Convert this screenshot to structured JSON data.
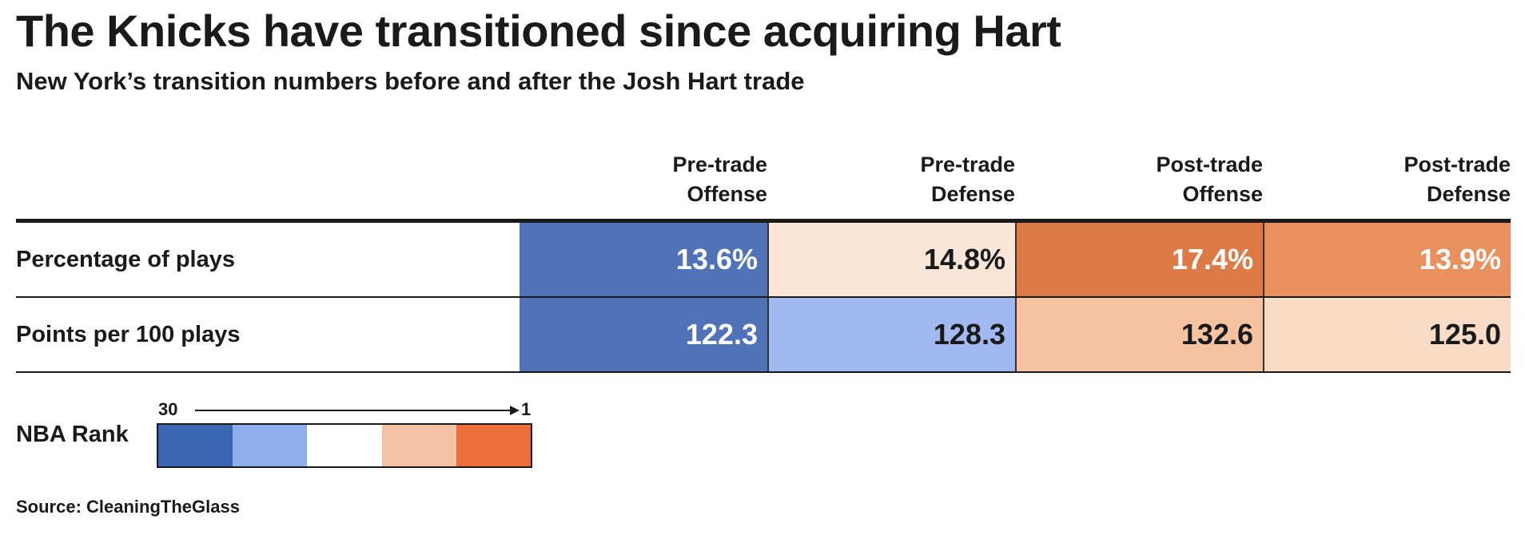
{
  "chart_data": {
    "type": "table",
    "title": "The Knicks have transitioned since acquiring Hart",
    "subtitle": "New York’s transition numbers before and after the Josh Hart trade",
    "columns": [
      {
        "line1": "Pre-trade",
        "line2": "Offense"
      },
      {
        "line1": "Pre-trade",
        "line2": "Defense"
      },
      {
        "line1": "Post-trade",
        "line2": "Offense"
      },
      {
        "line1": "Post-trade",
        "line2": "Defense"
      }
    ],
    "rows": [
      {
        "label": "Percentage of plays",
        "cells": [
          {
            "value": "13.6%",
            "color": "#4f72b8",
            "text_color": "#ffffff"
          },
          {
            "value": "14.8%",
            "color": "#f9e6d8",
            "text_color": "#1a1a1a"
          },
          {
            "value": "17.4%",
            "color": "#de7a46",
            "text_color": "#ffffff"
          },
          {
            "value": "13.9%",
            "color": "#e8915f",
            "text_color": "#ffffff"
          }
        ]
      },
      {
        "label": "Points per 100 plays",
        "cells": [
          {
            "value": "122.3",
            "color": "#4f72b8",
            "text_color": "#ffffff"
          },
          {
            "value": "128.3",
            "color": "#a1b9f0",
            "text_color": "#1a1a1a"
          },
          {
            "value": "132.6",
            "color": "#f5c3a0",
            "text_color": "#1a1a1a"
          },
          {
            "value": "125.0",
            "color": "#f9dcc6",
            "text_color": "#1a1a1a"
          }
        ]
      }
    ],
    "legend": {
      "label": "NBA Rank",
      "start": "30",
      "end": "1",
      "colors": [
        "#3d66b0",
        "#8faeed",
        "#ffffff",
        "#f5c1a3",
        "#ec6f3b"
      ]
    },
    "source": "Source: CleaningTheGlass"
  }
}
